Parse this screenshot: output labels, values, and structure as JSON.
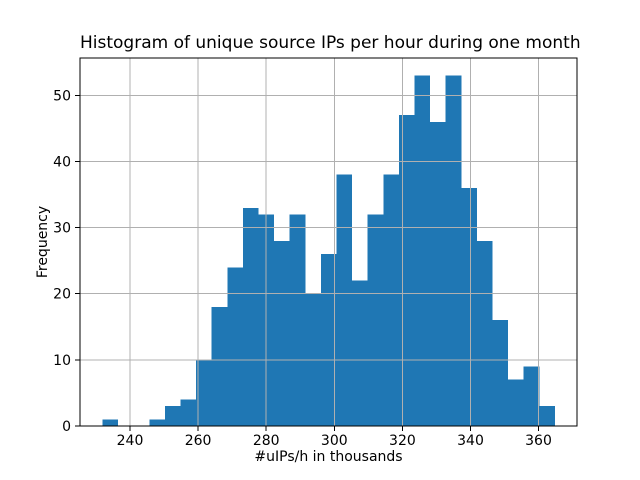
{
  "chart_data": {
    "type": "bar",
    "subtype": "histogram",
    "title": "Histogram of unique source IPs per hour during one month",
    "xlabel": "#uIPs/h in thousands",
    "ylabel": "Frequency",
    "bin_start": 231.9,
    "bin_width": 4.5828,
    "counts": [
      1,
      0,
      0,
      1,
      3,
      4,
      10,
      18,
      24,
      33,
      32,
      28,
      32,
      20,
      26,
      38,
      22,
      32,
      38,
      47,
      53,
      46,
      53,
      36,
      28,
      16,
      7,
      9,
      3
    ],
    "xticks": [
      240,
      260,
      280,
      300,
      320,
      340,
      360
    ],
    "yticks": [
      0,
      10,
      20,
      30,
      40,
      50
    ],
    "xlim": [
      225.3,
      371.3
    ],
    "ylim": [
      0,
      55.65
    ],
    "grid": true,
    "grid_above_bars": true,
    "legend": "none",
    "bar_color": "#1f77b4",
    "grid_color": "#b0b0b0",
    "spine_color": "#000000",
    "tick_color": "#000000",
    "text_color": "#000000",
    "background_color": "#ffffff"
  }
}
